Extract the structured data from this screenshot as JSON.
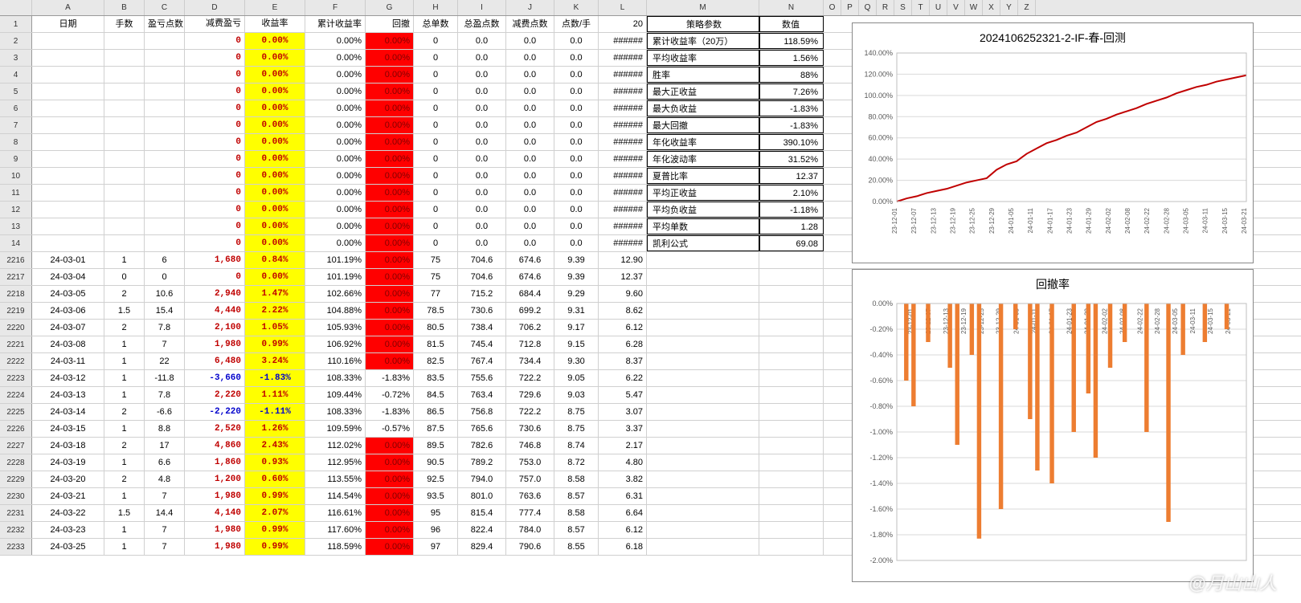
{
  "columns": [
    "A",
    "B",
    "C",
    "D",
    "E",
    "F",
    "G",
    "H",
    "I",
    "J",
    "K",
    "L",
    "M",
    "N",
    "O",
    "P",
    "Q",
    "R",
    "S",
    "T",
    "U",
    "V",
    "W",
    "X",
    "Y",
    "Z"
  ],
  "colWidths": {
    "A": 90,
    "B": 50,
    "C": 50,
    "D": 75,
    "E": 75,
    "F": 75,
    "G": 60,
    "H": 55,
    "I": 60,
    "J": 60,
    "K": 55,
    "L": 60,
    "M": 140,
    "N": 80
  },
  "headers": {
    "A": "日期",
    "B": "手数",
    "C": "盈亏点数",
    "D": "减费盈亏",
    "E": "收益率",
    "F": "累计收益率",
    "G": "回撤",
    "H": "总单数",
    "I": "总盈点数",
    "J": "减费点数",
    "K": "点数/手",
    "L": "20",
    "M": "策略参数",
    "N": "数值"
  },
  "topRows": [
    2,
    3,
    4,
    5,
    6,
    7,
    8,
    9,
    10,
    11,
    12,
    13,
    14
  ],
  "topRowData": {
    "D": "0",
    "E": "0.00%",
    "F": "0.00%",
    "G": "0.00%",
    "H": "0",
    "I": "0.0",
    "J": "0.0",
    "K": "0.0",
    "L": "######"
  },
  "stats": [
    {
      "label": "累计收益率（20万）",
      "val": "118.59%"
    },
    {
      "label": "平均收益率",
      "val": "1.56%"
    },
    {
      "label": "胜率",
      "val": "88%"
    },
    {
      "label": "最大正收益",
      "val": "7.26%"
    },
    {
      "label": "最大负收益",
      "val": "-1.83%"
    },
    {
      "label": "最大回撤",
      "val": "-1.83%"
    },
    {
      "label": "年化收益率",
      "val": "390.10%"
    },
    {
      "label": "年化波动率",
      "val": "31.52%"
    },
    {
      "label": "夏普比率",
      "val": "12.37"
    },
    {
      "label": "平均正收益",
      "val": "2.10%"
    },
    {
      "label": "平均负收益",
      "val": "-1.18%"
    },
    {
      "label": "平均单数",
      "val": "1.28"
    },
    {
      "label": "凯利公式",
      "val": "69.08"
    }
  ],
  "dataRows": [
    {
      "rn": 2216,
      "A": "24-03-01",
      "B": "1",
      "C": "6",
      "D": "1,680",
      "Dc": "r",
      "E": "0.84%",
      "Ec": "r",
      "F": "101.19%",
      "G": "0.00%",
      "Gb": "red",
      "H": "75",
      "I": "704.6",
      "J": "674.6",
      "K": "9.39",
      "L": "12.90"
    },
    {
      "rn": 2217,
      "A": "24-03-04",
      "B": "0",
      "C": "0",
      "D": "0",
      "Dc": "r",
      "E": "0.00%",
      "Ec": "r",
      "F": "101.19%",
      "G": "0.00%",
      "Gb": "red",
      "H": "75",
      "I": "704.6",
      "J": "674.6",
      "K": "9.39",
      "L": "12.37"
    },
    {
      "rn": 2218,
      "A": "24-03-05",
      "B": "2",
      "C": "10.6",
      "D": "2,940",
      "Dc": "r",
      "E": "1.47%",
      "Ec": "r",
      "F": "102.66%",
      "G": "0.00%",
      "Gb": "red",
      "H": "77",
      "I": "715.2",
      "J": "684.4",
      "K": "9.29",
      "L": "9.60"
    },
    {
      "rn": 2219,
      "A": "24-03-06",
      "B": "1.5",
      "C": "15.4",
      "D": "4,440",
      "Dc": "r",
      "E": "2.22%",
      "Ec": "r",
      "F": "104.88%",
      "G": "0.00%",
      "Gb": "red",
      "H": "78.5",
      "I": "730.6",
      "J": "699.2",
      "K": "9.31",
      "L": "8.62"
    },
    {
      "rn": 2220,
      "A": "24-03-07",
      "B": "2",
      "C": "7.8",
      "D": "2,100",
      "Dc": "r",
      "E": "1.05%",
      "Ec": "r",
      "F": "105.93%",
      "G": "0.00%",
      "Gb": "red",
      "H": "80.5",
      "I": "738.4",
      "J": "706.2",
      "K": "9.17",
      "L": "6.12"
    },
    {
      "rn": 2221,
      "A": "24-03-08",
      "B": "1",
      "C": "7",
      "D": "1,980",
      "Dc": "r",
      "E": "0.99%",
      "Ec": "r",
      "F": "106.92%",
      "G": "0.00%",
      "Gb": "red",
      "H": "81.5",
      "I": "745.4",
      "J": "712.8",
      "K": "9.15",
      "L": "6.28"
    },
    {
      "rn": 2222,
      "A": "24-03-11",
      "B": "1",
      "C": "22",
      "D": "6,480",
      "Dc": "r",
      "E": "3.24%",
      "Ec": "r",
      "F": "110.16%",
      "G": "0.00%",
      "Gb": "red",
      "H": "82.5",
      "I": "767.4",
      "J": "734.4",
      "K": "9.30",
      "L": "8.37"
    },
    {
      "rn": 2223,
      "A": "24-03-12",
      "B": "1",
      "C": "-11.8",
      "D": "-3,660",
      "Dc": "b",
      "E": "-1.83%",
      "Ec": "b",
      "F": "108.33%",
      "G": "-1.83%",
      "Gb": "",
      "H": "83.5",
      "I": "755.6",
      "J": "722.2",
      "K": "9.05",
      "L": "6.22"
    },
    {
      "rn": 2224,
      "A": "24-03-13",
      "B": "1",
      "C": "7.8",
      "D": "2,220",
      "Dc": "r",
      "E": "1.11%",
      "Ec": "r",
      "F": "109.44%",
      "G": "-0.72%",
      "Gb": "",
      "H": "84.5",
      "I": "763.4",
      "J": "729.6",
      "K": "9.03",
      "L": "5.47"
    },
    {
      "rn": 2225,
      "A": "24-03-14",
      "B": "2",
      "C": "-6.6",
      "D": "-2,220",
      "Dc": "b",
      "E": "-1.11%",
      "Ec": "b",
      "F": "108.33%",
      "G": "-1.83%",
      "Gb": "",
      "H": "86.5",
      "I": "756.8",
      "J": "722.2",
      "K": "8.75",
      "L": "3.07"
    },
    {
      "rn": 2226,
      "A": "24-03-15",
      "B": "1",
      "C": "8.8",
      "D": "2,520",
      "Dc": "r",
      "E": "1.26%",
      "Ec": "r",
      "F": "109.59%",
      "G": "-0.57%",
      "Gb": "",
      "H": "87.5",
      "I": "765.6",
      "J": "730.6",
      "K": "8.75",
      "L": "3.37"
    },
    {
      "rn": 2227,
      "A": "24-03-18",
      "B": "2",
      "C": "17",
      "D": "4,860",
      "Dc": "r",
      "E": "2.43%",
      "Ec": "r",
      "F": "112.02%",
      "G": "0.00%",
      "Gb": "red",
      "H": "89.5",
      "I": "782.6",
      "J": "746.8",
      "K": "8.74",
      "L": "2.17"
    },
    {
      "rn": 2228,
      "A": "24-03-19",
      "B": "1",
      "C": "6.6",
      "D": "1,860",
      "Dc": "r",
      "E": "0.93%",
      "Ec": "r",
      "F": "112.95%",
      "G": "0.00%",
      "Gb": "red",
      "H": "90.5",
      "I": "789.2",
      "J": "753.0",
      "K": "8.72",
      "L": "4.80"
    },
    {
      "rn": 2229,
      "A": "24-03-20",
      "B": "2",
      "C": "4.8",
      "D": "1,200",
      "Dc": "r",
      "E": "0.60%",
      "Ec": "r",
      "F": "113.55%",
      "G": "0.00%",
      "Gb": "red",
      "H": "92.5",
      "I": "794.0",
      "J": "757.0",
      "K": "8.58",
      "L": "3.82"
    },
    {
      "rn": 2230,
      "A": "24-03-21",
      "B": "1",
      "C": "7",
      "D": "1,980",
      "Dc": "r",
      "E": "0.99%",
      "Ec": "r",
      "F": "114.54%",
      "G": "0.00%",
      "Gb": "red",
      "H": "93.5",
      "I": "801.0",
      "J": "763.6",
      "K": "8.57",
      "L": "6.31"
    },
    {
      "rn": 2231,
      "A": "24-03-22",
      "B": "1.5",
      "C": "14.4",
      "D": "4,140",
      "Dc": "r",
      "E": "2.07%",
      "Ec": "r",
      "F": "116.61%",
      "G": "0.00%",
      "Gb": "red",
      "H": "95",
      "I": "815.4",
      "J": "777.4",
      "K": "8.58",
      "L": "6.64"
    },
    {
      "rn": 2232,
      "A": "24-03-23",
      "B": "1",
      "C": "7",
      "D": "1,980",
      "Dc": "r",
      "E": "0.99%",
      "Ec": "r",
      "F": "117.60%",
      "G": "0.00%",
      "Gb": "red",
      "H": "96",
      "I": "822.4",
      "J": "784.0",
      "K": "8.57",
      "L": "6.12"
    },
    {
      "rn": 2233,
      "A": "24-03-25",
      "B": "1",
      "C": "7",
      "D": "1,980",
      "Dc": "r",
      "E": "0.99%",
      "Ec": "r",
      "F": "118.59%",
      "G": "0.00%",
      "Gb": "red",
      "H": "97",
      "I": "829.4",
      "J": "790.6",
      "K": "8.55",
      "L": "6.18"
    }
  ],
  "chart1": {
    "title": "2024106252321-2-IF-春-回测",
    "yTicks": [
      "140.00%",
      "120.00%",
      "100.00%",
      "80.00%",
      "60.00%",
      "40.00%",
      "20.00%",
      "0.00%"
    ],
    "xTicks": [
      "23-12-01",
      "23-12-07",
      "23-12-13",
      "23-12-19",
      "23-12-25",
      "23-12-29",
      "24-01-05",
      "24-01-11",
      "24-01-17",
      "24-01-23",
      "24-01-29",
      "24-02-02",
      "24-02-08",
      "24-02-22",
      "24-02-28",
      "24-03-05",
      "24-03-11",
      "24-03-15",
      "24-03-21"
    ],
    "lineColor": "#c00000",
    "bg": "#ffffff",
    "grid": "#d9d9d9",
    "series": [
      0,
      3,
      5,
      8,
      10,
      12,
      15,
      18,
      20,
      22,
      30,
      35,
      38,
      45,
      50,
      55,
      58,
      62,
      65,
      70,
      75,
      78,
      82,
      85,
      88,
      92,
      95,
      98,
      102,
      105,
      108,
      110,
      113,
      115,
      117,
      119
    ]
  },
  "chart2": {
    "title": "回撤率",
    "yTicks": [
      "0.00%",
      "-0.20%",
      "-0.40%",
      "-0.60%",
      "-0.80%",
      "-1.00%",
      "-1.20%",
      "-1.40%",
      "-1.60%",
      "-1.80%",
      "-2.00%"
    ],
    "xTicks": [
      "23-12-01",
      "23-12-07",
      "23-12-13",
      "23-12-19",
      "23-12-25",
      "23-12-29",
      "24-01-05",
      "24-01-11",
      "24-01-17",
      "24-01-23",
      "24-01-29",
      "24-02-02",
      "24-02-08",
      "24-02-22",
      "24-02-28",
      "24-03-05",
      "24-03-11",
      "24-03-15",
      "24-03-21"
    ],
    "barColor": "#ed7d31",
    "bg": "#ffffff",
    "grid": "#d9d9d9",
    "bars": [
      0,
      -0.6,
      -0.8,
      0,
      -0.3,
      0,
      0,
      -0.5,
      -1.1,
      0,
      -0.4,
      -1.83,
      0,
      0,
      -1.6,
      0,
      -0.2,
      0,
      -0.9,
      -1.3,
      0,
      -1.4,
      0,
      0,
      -1.0,
      0,
      -0.7,
      -1.2,
      0,
      -0.5,
      0,
      -0.3,
      0,
      0,
      -1.0,
      0,
      0,
      -1.7,
      0,
      -0.4,
      0,
      0,
      -0.3,
      0,
      0,
      -0.2,
      0,
      0
    ]
  },
  "watermark": "@月山山人"
}
